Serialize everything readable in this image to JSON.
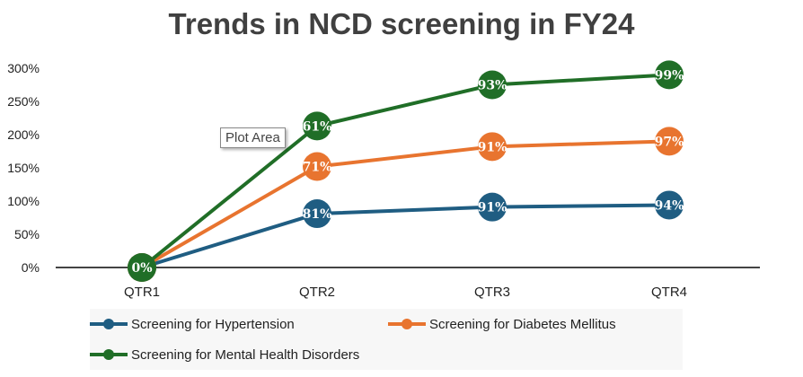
{
  "chart_data": {
    "type": "line",
    "title": "Trends in NCD screening in FY24",
    "categories": [
      "QTR1",
      "QTR2",
      "QTR3",
      "QTR4"
    ],
    "ylim": [
      0,
      300
    ],
    "yticks": [
      "0%",
      "50%",
      "100%",
      "150%",
      "200%",
      "250%",
      "300%"
    ],
    "ytick_values": [
      0,
      50,
      100,
      150,
      200,
      250,
      300
    ],
    "grid": false,
    "legend_position": "bottom",
    "series": [
      {
        "name": "Screening for Hypertension",
        "color": "#1f5d82",
        "values": [
          0,
          81,
          91,
          94
        ],
        "labels": [
          "0%",
          "81%",
          "91%",
          "94%"
        ]
      },
      {
        "name": "Screening for Diabetes Mellitus",
        "color": "#e8742f",
        "values": [
          0,
          152,
          182,
          190
        ],
        "labels": [
          "0%",
          "71%",
          "91%",
          "97%"
        ]
      },
      {
        "name": "Screening for Mental Health Disorders",
        "color": "#206e27",
        "values": [
          0,
          213,
          275,
          290
        ],
        "labels": [
          "0%",
          "61%",
          "93%",
          "99%"
        ]
      }
    ]
  },
  "tooltip": {
    "text": "Plot Area"
  }
}
